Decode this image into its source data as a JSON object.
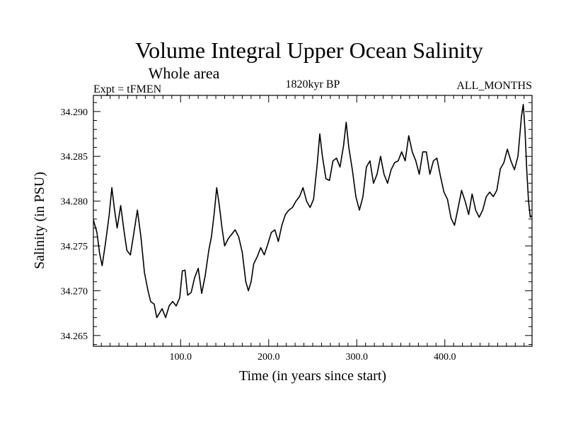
{
  "chart_data": {
    "type": "line",
    "title": "Volume Integral Upper Ocean Salinity",
    "subtitle": "Whole area",
    "left_label": "Expt = tFMEN",
    "center_label": "1820kyr BP",
    "right_label": "ALL_MONTHS",
    "xlabel": "Time (in years since start)",
    "ylabel": "Salinity (in PSU)",
    "xlim": [
      1,
      499
    ],
    "ylim": [
      34.2638,
      34.2918
    ],
    "x_ticks": [
      100,
      200,
      300,
      400
    ],
    "x_tick_labels": [
      "100.0",
      "200.0",
      "300.0",
      "400.0"
    ],
    "y_ticks": [
      34.265,
      34.27,
      34.275,
      34.28,
      34.285,
      34.29
    ],
    "y_tick_labels": [
      "34.265",
      "34.270",
      "34.275",
      "34.280",
      "34.285",
      "34.290"
    ],
    "grid": false,
    "series": [
      {
        "name": "salinity",
        "color": "#000000",
        "x": [
          1,
          5,
          8,
          11,
          15,
          19,
          22,
          25,
          28,
          32,
          36,
          39,
          43,
          47,
          51,
          55,
          59,
          63,
          66,
          70,
          73,
          76,
          79,
          83,
          87,
          91,
          95,
          99,
          102,
          105,
          108,
          112,
          116,
          120,
          124,
          128,
          132,
          135,
          138,
          141,
          144,
          147,
          150,
          154,
          158,
          162,
          166,
          170,
          174,
          177,
          180,
          183,
          187,
          191,
          195,
          199,
          203,
          207,
          211,
          215,
          219,
          223,
          227,
          231,
          235,
          239,
          243,
          247,
          251,
          255,
          258,
          261,
          265,
          269,
          273,
          277,
          281,
          285,
          288,
          291,
          295,
          299,
          303,
          307,
          311,
          315,
          319,
          323,
          327,
          331,
          335,
          339,
          343,
          347,
          351,
          355,
          359,
          363,
          367,
          371,
          375,
          379,
          383,
          387,
          391,
          395,
          399,
          403,
          407,
          411,
          415,
          419,
          423,
          427,
          431,
          435,
          439,
          443,
          447,
          451,
          455,
          459,
          463,
          467,
          471,
          475,
          479,
          483,
          487,
          489,
          491,
          493,
          495,
          497,
          499
        ],
        "values": [
          34.2779,
          34.2765,
          34.2742,
          34.2728,
          34.2755,
          34.2785,
          34.2815,
          34.279,
          34.277,
          34.2795,
          34.2765,
          34.2745,
          34.274,
          34.2765,
          34.279,
          34.276,
          34.272,
          34.27,
          34.2688,
          34.2685,
          34.267,
          34.2675,
          34.268,
          34.267,
          34.2683,
          34.2688,
          34.2683,
          34.2692,
          34.2722,
          34.2723,
          34.2695,
          34.2698,
          34.2715,
          34.2725,
          34.2697,
          34.2717,
          34.2745,
          34.276,
          34.2785,
          34.2815,
          34.2795,
          34.277,
          34.275,
          34.2758,
          34.2763,
          34.2768,
          34.276,
          34.2743,
          34.271,
          34.27,
          34.271,
          34.273,
          34.2738,
          34.2748,
          34.274,
          34.2752,
          34.2765,
          34.2768,
          34.2755,
          34.2773,
          34.2785,
          34.279,
          34.2793,
          34.28,
          34.2805,
          34.2815,
          34.28,
          34.2793,
          34.2802,
          34.284,
          34.2875,
          34.285,
          34.2825,
          34.2823,
          34.2845,
          34.2848,
          34.2838,
          34.2862,
          34.2888,
          34.286,
          34.2835,
          34.2805,
          34.279,
          34.2805,
          34.2838,
          34.2845,
          34.282,
          34.283,
          34.285,
          34.283,
          34.282,
          34.2835,
          34.2843,
          34.2845,
          34.2855,
          34.2845,
          34.2873,
          34.2855,
          34.2845,
          34.283,
          34.2855,
          34.2855,
          34.283,
          34.2845,
          34.2848,
          34.2828,
          34.281,
          34.2802,
          34.2781,
          34.2773,
          34.2792,
          34.2812,
          34.28,
          34.2785,
          34.2808,
          34.279,
          34.2782,
          34.279,
          34.2805,
          34.281,
          34.2805,
          34.2812,
          34.2836,
          34.2843,
          34.2858,
          34.2845,
          34.2835,
          34.285,
          34.2895,
          34.2908,
          34.288,
          34.2835,
          34.28,
          34.2782,
          34.2784
        ]
      }
    ]
  }
}
